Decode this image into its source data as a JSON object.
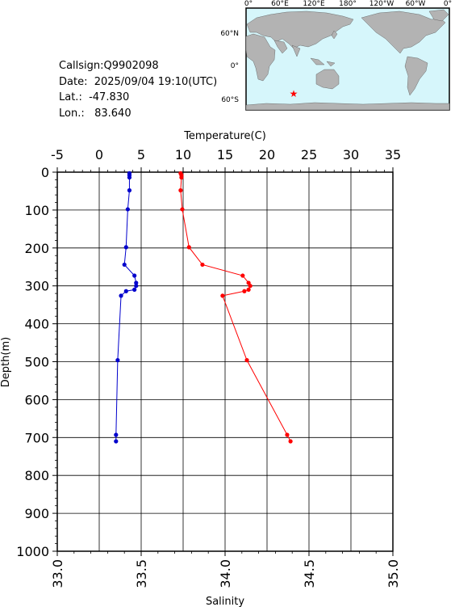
{
  "info": {
    "callsign": "Callsign:Q9902098",
    "date": "Date:  2025/09/04 19:10(UTC)",
    "lat": "Lat.:  -47.830",
    "lon": "Lon.:   83.640"
  },
  "map": {
    "top_labels": [
      "0°",
      "60°E",
      "120°E",
      "180°",
      "120°W",
      "60°W",
      "0°"
    ],
    "side_labels": [
      "60°N",
      "0°",
      "60°S"
    ],
    "station_marker": "star",
    "colors": {
      "ocean": "#d6f6fb",
      "land": "#b3b3b3",
      "marker": "#ff0000"
    }
  },
  "chart_data": {
    "type": "line",
    "xlabel_top": "Temperature(C)",
    "xlabel_bottom": "Salinity",
    "ylabel": "Depth(m)",
    "temperature_ticks": [
      "-5",
      "0",
      "5",
      "10",
      "15",
      "20",
      "25",
      "30",
      "35"
    ],
    "salinity_ticks": [
      "33.0",
      "33.5",
      "34.0",
      "34.5",
      "35.0"
    ],
    "depth_ticks": [
      "0",
      "100",
      "200",
      "300",
      "400",
      "500",
      "600",
      "700",
      "800",
      "900",
      "1000"
    ],
    "temperature_range": [
      -5,
      35
    ],
    "salinity_range": [
      33.0,
      35.0
    ],
    "depth_range": [
      0,
      1000
    ],
    "grid": true,
    "series": [
      {
        "name": "Temperature",
        "axis": "top",
        "color": "#ff0000",
        "points": [
          [
            9.7,
            3
          ],
          [
            9.8,
            8
          ],
          [
            9.8,
            14
          ],
          [
            9.7,
            48
          ],
          [
            9.9,
            98
          ],
          [
            10.7,
            198
          ],
          [
            12.3,
            244
          ],
          [
            17.1,
            273
          ],
          [
            17.8,
            292
          ],
          [
            18.0,
            300
          ],
          [
            17.8,
            310
          ],
          [
            17.3,
            314
          ],
          [
            14.7,
            326
          ],
          [
            17.6,
            496
          ],
          [
            22.4,
            693
          ],
          [
            22.8,
            710
          ]
        ]
      },
      {
        "name": "Salinity",
        "axis": "bottom",
        "color": "#0000cc",
        "points": [
          [
            33.43,
            3
          ],
          [
            33.43,
            8
          ],
          [
            33.43,
            14
          ],
          [
            33.43,
            48
          ],
          [
            33.42,
            98
          ],
          [
            33.41,
            198
          ],
          [
            33.4,
            244
          ],
          [
            33.46,
            273
          ],
          [
            33.47,
            292
          ],
          [
            33.47,
            300
          ],
          [
            33.46,
            310
          ],
          [
            33.41,
            314
          ],
          [
            33.38,
            326
          ],
          [
            33.36,
            496
          ],
          [
            33.35,
            693
          ],
          [
            33.35,
            710
          ]
        ]
      }
    ]
  }
}
